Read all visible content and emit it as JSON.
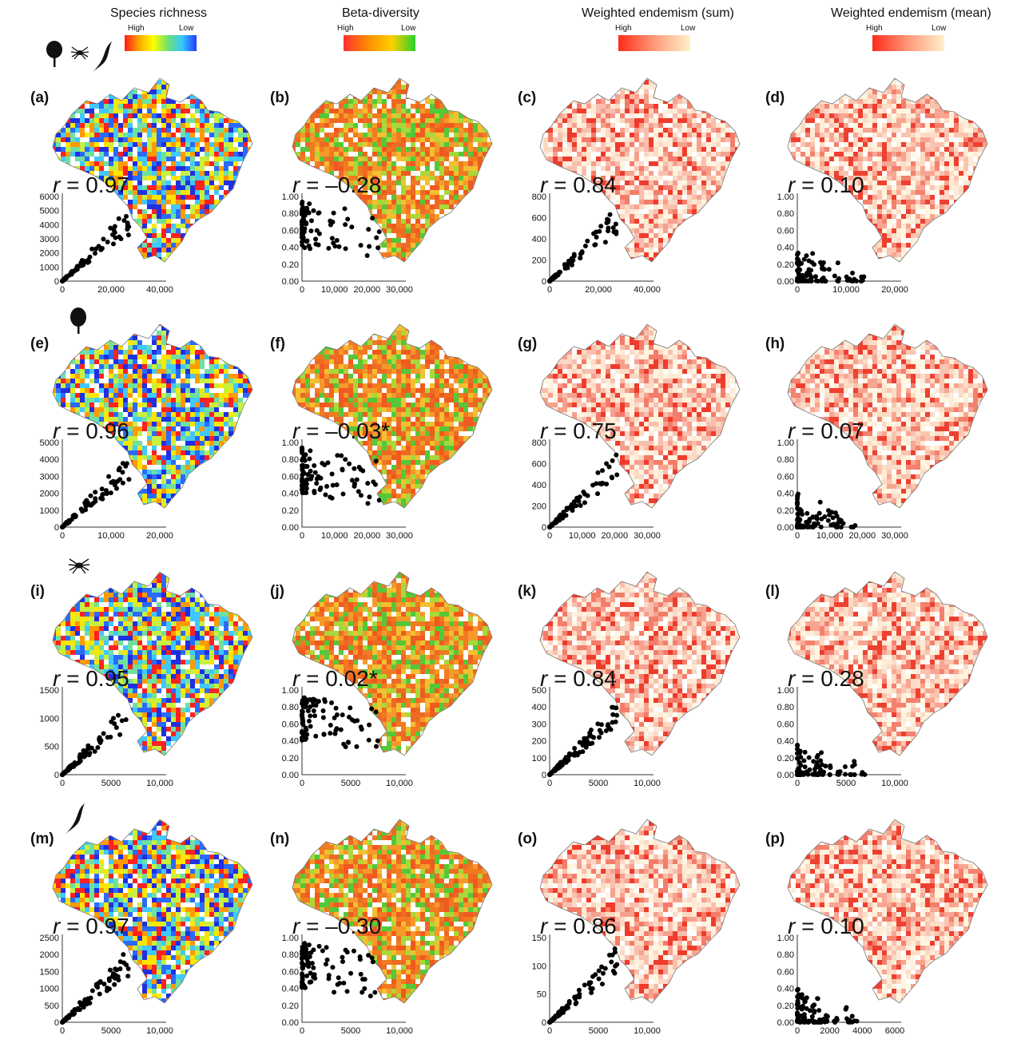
{
  "headers": [
    "Species richness",
    "Beta-diversity",
    "Weighted endemism (sum)",
    "Weighted endemism (mean)"
  ],
  "legends": [
    {
      "high": "High",
      "low": "Low"
    },
    {
      "high": "High",
      "low": "Low"
    },
    {
      "high": "High",
      "low": "Low"
    },
    {
      "high": "High",
      "low": "Low"
    }
  ],
  "row_icons": [
    "plant-spider-bird-icons",
    "plant-icon",
    "spider-icon",
    "bird-icon"
  ],
  "panels": [
    {
      "label": "(a)",
      "r": "0.97",
      "yticks": [
        "0",
        "1000",
        "2000",
        "3000",
        "4000",
        "5000",
        "6000"
      ],
      "xticks": [
        "0",
        "20,000",
        "40,000"
      ],
      "ymax": 6000,
      "xmax": 40000,
      "scheme": "richness"
    },
    {
      "label": "(b)",
      "r": "–0.28",
      "yticks": [
        "0.00",
        "0.20",
        "0.40",
        "0.60",
        "0.80",
        "1.00"
      ],
      "xticks": [
        "0",
        "10,000",
        "20,000",
        "30,000"
      ],
      "ymax": 1,
      "xmax": 30000,
      "scheme": "beta"
    },
    {
      "label": "(c)",
      "r": "0.84",
      "yticks": [
        "0",
        "200",
        "400",
        "600",
        "800"
      ],
      "xticks": [
        "0",
        "20,000",
        "40,000"
      ],
      "ymax": 800,
      "xmax": 40000,
      "scheme": "end"
    },
    {
      "label": "(d)",
      "r": "0.10",
      "yticks": [
        "0.00",
        "0.20",
        "0.40",
        "0.60",
        "0.80",
        "1.00"
      ],
      "xticks": [
        "0",
        "10,000",
        "20,000"
      ],
      "ymax": 1,
      "xmax": 23000,
      "scheme": "endm"
    },
    {
      "label": "(e)",
      "r": "0.96",
      "yticks": [
        "0",
        "1000",
        "2000",
        "3000",
        "4000",
        "5000"
      ],
      "xticks": [
        "0",
        "10,000",
        "20,000"
      ],
      "ymax": 5000,
      "xmax": 22000,
      "scheme": "richness"
    },
    {
      "label": "(f)",
      "r": "–0.03*",
      "yticks": [
        "0.00",
        "0.20",
        "0.40",
        "0.60",
        "0.80",
        "1.00"
      ],
      "xticks": [
        "0",
        "10,000",
        "20,000",
        "30,000"
      ],
      "ymax": 1,
      "xmax": 30000,
      "scheme": "beta"
    },
    {
      "label": "(g)",
      "r": "0.75",
      "yticks": [
        "0",
        "200",
        "400",
        "600",
        "800"
      ],
      "xticks": [
        "0",
        "10,000",
        "20,000",
        "30,000"
      ],
      "ymax": 800,
      "xmax": 30000,
      "scheme": "end"
    },
    {
      "label": "(h)",
      "r": "0.07",
      "yticks": [
        "0.00",
        "0.20",
        "0.40",
        "0.60",
        "0.80",
        "1.00"
      ],
      "xticks": [
        "0",
        "10,000",
        "20,000",
        "30,000"
      ],
      "ymax": 1,
      "xmax": 30000,
      "scheme": "endm"
    },
    {
      "label": "(i)",
      "r": "0.95",
      "yticks": [
        "0",
        "500",
        "1000",
        "1500"
      ],
      "xticks": [
        "0",
        "5000",
        "10,000"
      ],
      "ymax": 1500,
      "xmax": 10000,
      "scheme": "richness"
    },
    {
      "label": "(j)",
      "r": "0.02*",
      "yticks": [
        "0.00",
        "0.20",
        "0.40",
        "0.60",
        "0.80",
        "1.00"
      ],
      "xticks": [
        "0",
        "5000",
        "10,000"
      ],
      "ymax": 1,
      "xmax": 10000,
      "scheme": "beta"
    },
    {
      "label": "(k)",
      "r": "0.84",
      "yticks": [
        "0",
        "100",
        "200",
        "300",
        "400",
        "500"
      ],
      "xticks": [
        "0",
        "5000",
        "10,000"
      ],
      "ymax": 500,
      "xmax": 10000,
      "scheme": "end"
    },
    {
      "label": "(l)",
      "r": "0.28",
      "yticks": [
        "0.00",
        "0.20",
        "0.40",
        "0.60",
        "0.80",
        "1.00"
      ],
      "xticks": [
        "0",
        "5000",
        "10,000"
      ],
      "ymax": 1,
      "xmax": 10000,
      "scheme": "endm"
    },
    {
      "label": "(m)",
      "r": "0.97",
      "yticks": [
        "0",
        "500",
        "1000",
        "1500",
        "2000",
        "2500"
      ],
      "xticks": [
        "0",
        "5000",
        "10,000"
      ],
      "ymax": 2500,
      "xmax": 10000,
      "scheme": "richness"
    },
    {
      "label": "(n)",
      "r": "–0.30",
      "yticks": [
        "0.00",
        "0.20",
        "0.40",
        "0.60",
        "0.80",
        "1.00"
      ],
      "xticks": [
        "0",
        "5000",
        "10,000"
      ],
      "ymax": 1,
      "xmax": 10000,
      "scheme": "beta"
    },
    {
      "label": "(o)",
      "r": "0.86",
      "yticks": [
        "0",
        "50",
        "100",
        "150"
      ],
      "xticks": [
        "0",
        "5000",
        "10,000"
      ],
      "ymax": 150,
      "xmax": 10000,
      "scheme": "end"
    },
    {
      "label": "(p)",
      "r": "0.10",
      "yticks": [
        "0.00",
        "0.20",
        "0.40",
        "0.60",
        "0.80",
        "1.00"
      ],
      "xticks": [
        "0",
        "2000",
        "4000",
        "6000"
      ],
      "ymax": 1,
      "xmax": 6000,
      "scheme": "endm"
    }
  ],
  "colors": {
    "richness": [
      "#ff2020",
      "#ff9a00",
      "#ffe600",
      "#c8f040",
      "#6fe0a0",
      "#40c8ff",
      "#2a6aff",
      "#2030e0"
    ],
    "beta": [
      "#f05a1e",
      "#f27a20",
      "#ee6a24",
      "#f59a2a",
      "#f2c030",
      "#a8d83a",
      "#54c838"
    ],
    "end": [
      "#ef3b2c",
      "#f47c6a",
      "#f7a08e",
      "#f9bfae",
      "#fbd9c4",
      "#fde9d6",
      "#fff4e0"
    ],
    "endm": [
      "#ee4030",
      "#f4806e",
      "#f8a592",
      "#fac4b0",
      "#fcdcc6",
      "#fdecd8",
      "#fff6e2"
    ]
  }
}
